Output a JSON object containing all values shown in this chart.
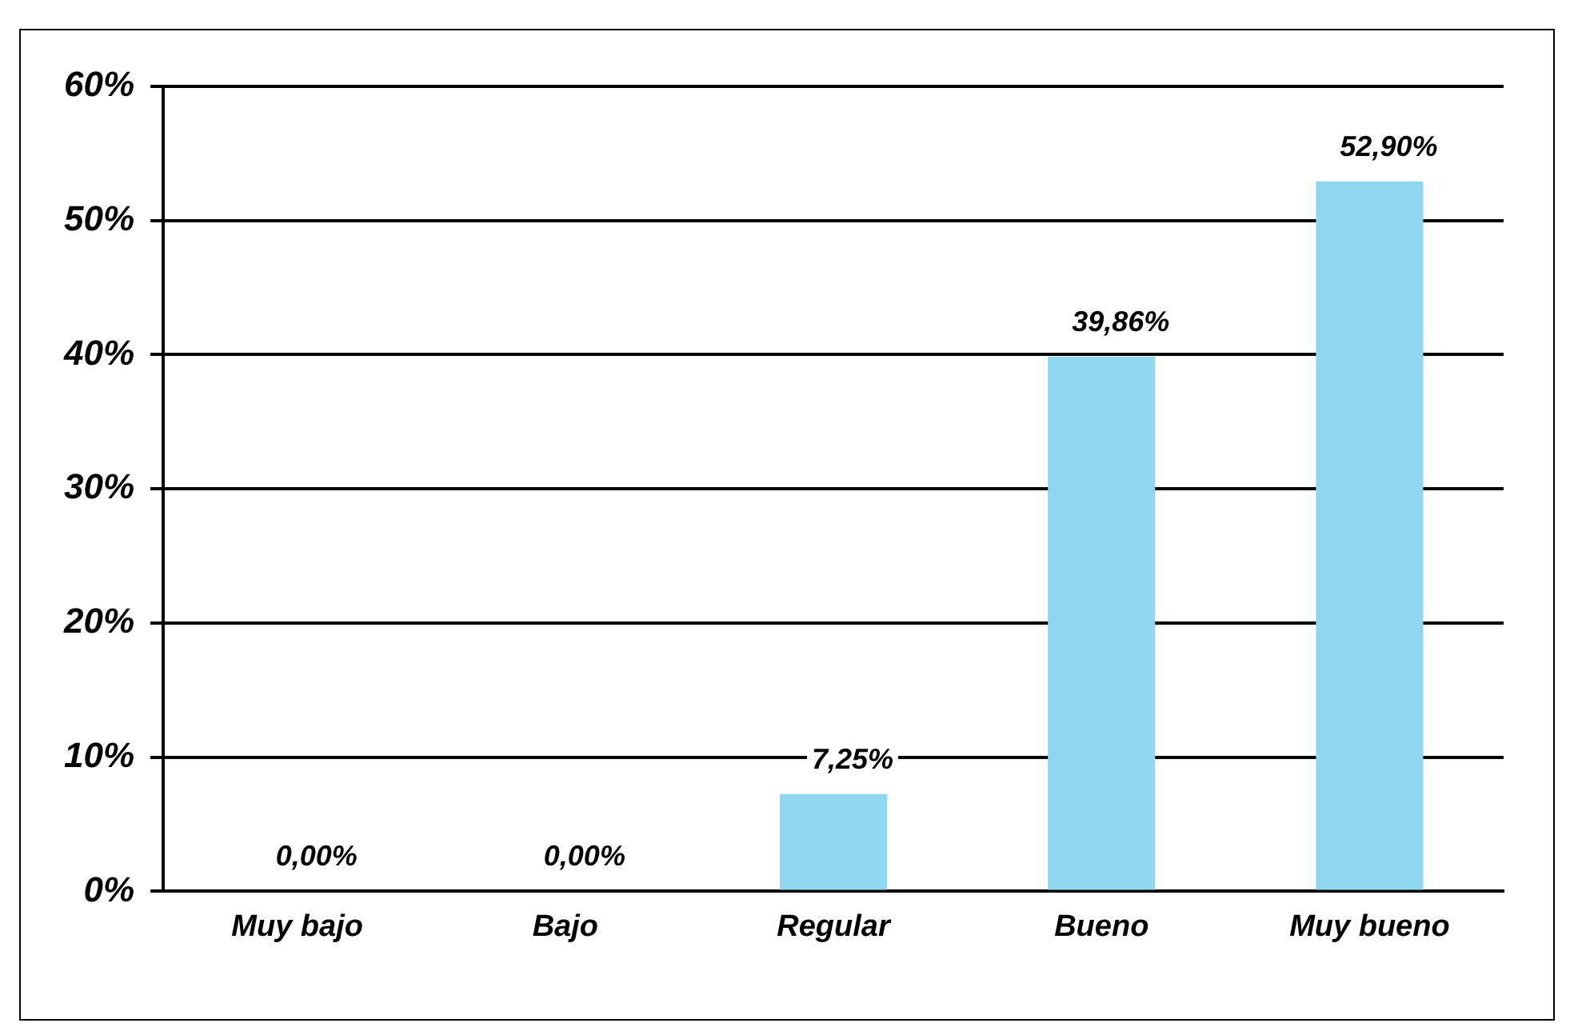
{
  "chart_data": {
    "type": "bar",
    "categories": [
      "Muy bajo",
      "Bajo",
      "Regular",
      "Bueno",
      "Muy bueno"
    ],
    "values": [
      0,
      0,
      7.25,
      39.86,
      52.9
    ],
    "value_labels": [
      "0,00%",
      "0,00%",
      "7,25%",
      "39,86%",
      "52,90%"
    ],
    "color": "#8fd6f0",
    "ylim": [
      0,
      60
    ],
    "yticks": [
      {
        "value": 0,
        "label": "0%"
      },
      {
        "value": 10,
        "label": "10%"
      },
      {
        "value": 20,
        "label": "20%"
      },
      {
        "value": 30,
        "label": "30%"
      },
      {
        "value": 40,
        "label": "40%"
      },
      {
        "value": 50,
        "label": "50%"
      },
      {
        "value": 60,
        "label": "60%"
      }
    ],
    "grid": "y",
    "legend": false
  }
}
